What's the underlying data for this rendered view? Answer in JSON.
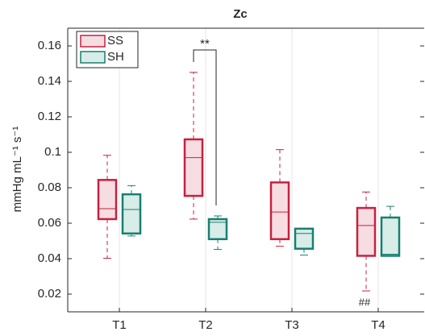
{
  "chart_data": {
    "type": "box",
    "title": "Zc",
    "y_label": "mmHg mL⁻¹ s⁻¹",
    "categories": [
      "T1",
      "T2",
      "T3",
      "T4"
    ],
    "ylim": [
      0.01,
      0.17
    ],
    "yticks": [
      0.02,
      0.04,
      0.06,
      0.08,
      0.1,
      0.12,
      0.14,
      0.16
    ],
    "grid": true,
    "legend": "upper left",
    "annotations": [
      "**",
      "##"
    ],
    "series": [
      {
        "name": "SS",
        "color": "#c8203f",
        "fill": "#f6dde2",
        "whislo": [
          0.0402,
          0.0623,
          0.047,
          0.0218
        ],
        "q1": [
          0.0623,
          0.0754,
          0.051,
          0.0416
        ],
        "med": [
          0.0682,
          0.097,
          0.0663,
          0.0587
        ],
        "q3": [
          0.0844,
          0.1073,
          0.083,
          0.0686
        ],
        "whishi": [
          0.0983,
          0.1451,
          0.1015,
          0.0776
        ]
      },
      {
        "name": "SH",
        "color": "#17806f",
        "fill": "#d8ece8",
        "whislo": [
          0.0528,
          0.0452,
          0.042,
          0.0416
        ],
        "q1": [
          0.0542,
          0.051,
          0.0456,
          0.0416
        ],
        "med": [
          0.0677,
          0.0605,
          0.0542,
          0.0425
        ],
        "q3": [
          0.0763,
          0.0623,
          0.0569,
          0.0632
        ],
        "whishi": [
          0.0812,
          0.0641,
          0.0569,
          0.0695
        ]
      }
    ]
  }
}
